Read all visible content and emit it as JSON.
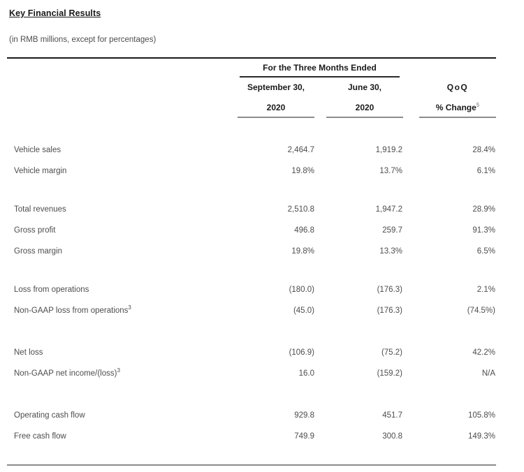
{
  "title": "Key Financial Results",
  "subtitle": "(in RMB millions, except for percentages)",
  "table": {
    "span_header": "For the Three Months Ended",
    "columns": [
      {
        "line1": "September 30,",
        "line2": "2020"
      },
      {
        "line1": "June 30,",
        "line2": "2020"
      },
      {
        "line1": "QoQ",
        "line2": "% Change",
        "line2_sup": "5"
      }
    ],
    "groups": [
      {
        "rows": [
          {
            "label": "Vehicle sales",
            "sep30_2020": "2,464.7",
            "jun30_2020": "1,919.2",
            "qoq_change": "28.4%"
          },
          {
            "label": "Vehicle margin",
            "sep30_2020": "19.8%",
            "jun30_2020": "13.7%",
            "qoq_change": "6.1%"
          }
        ]
      },
      {
        "rows": [
          {
            "label": "Total revenues",
            "sep30_2020": "2,510.8",
            "jun30_2020": "1,947.2",
            "qoq_change": "28.9%"
          },
          {
            "label": "Gross profit",
            "sep30_2020": "496.8",
            "jun30_2020": "259.7",
            "qoq_change": "91.3%"
          },
          {
            "label": "Gross margin",
            "sep30_2020": "19.8%",
            "jun30_2020": "13.3%",
            "qoq_change": "6.5%"
          }
        ]
      },
      {
        "rows": [
          {
            "label": "Loss from operations",
            "sep30_2020": "(180.0)",
            "jun30_2020": "(176.3)",
            "qoq_change": "2.1%"
          },
          {
            "label": "Non-GAAP loss from operations",
            "label_sup": "3",
            "sep30_2020": "(45.0)",
            "jun30_2020": "(176.3)",
            "qoq_change": "(74.5%)"
          }
        ]
      },
      {
        "rows": [
          {
            "label": "Net loss",
            "sep30_2020": "(106.9)",
            "jun30_2020": "(75.2)",
            "qoq_change": "42.2%"
          },
          {
            "label": "Non-GAAP net income/(loss)",
            "label_sup": "3",
            "sep30_2020": "16.0",
            "jun30_2020": "(159.2)",
            "qoq_change": "N/A"
          }
        ]
      },
      {
        "rows": [
          {
            "label": "Operating cash flow",
            "sep30_2020": "929.8",
            "jun30_2020": "451.7",
            "qoq_change": "105.8%"
          },
          {
            "label": "Free cash flow",
            "sep30_2020": "749.9",
            "jun30_2020": "300.8",
            "qoq_change": "149.3%"
          }
        ]
      }
    ]
  },
  "colors": {
    "background": "#ffffff",
    "heading_text": "#1a1a1a",
    "body_text": "#4d4d4d",
    "rule_dark": "#1a1a1a",
    "rule_gray": "#8c8c8c",
    "superscript_light": "#9a9a9a"
  }
}
